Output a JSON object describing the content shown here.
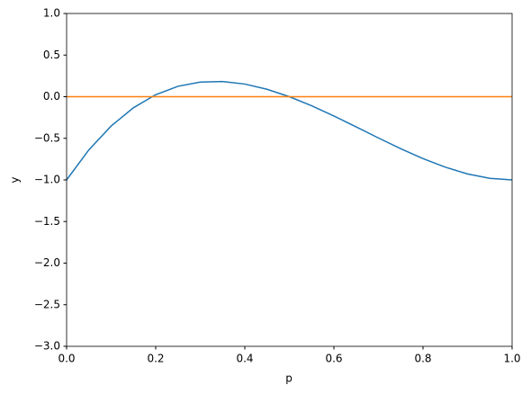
{
  "chart_data": {
    "type": "line",
    "x_label": "p",
    "y_label": "y",
    "x": [
      0,
      0.05,
      0.1,
      0.15,
      0.2,
      0.25,
      0.3,
      0.35,
      0.4,
      0.45,
      0.5,
      0.55,
      0.6,
      0.65,
      0.7,
      0.75,
      0.8,
      0.85,
      0.9,
      0.95,
      1
    ],
    "series": [
      {
        "color": "#1f77b4",
        "values": [
          -1,
          -0.639,
          -0.352,
          -0.133,
          0.024,
          0.125,
          0.176,
          0.183,
          0.152,
          0.089,
          0,
          -0.109,
          -0.232,
          -0.363,
          -0.496,
          -0.625,
          -0.744,
          -0.847,
          -0.928,
          -0.981,
          -1
        ]
      },
      {
        "color": "#ff7f0e",
        "values": [
          0,
          0,
          0,
          0,
          0,
          0,
          0,
          0,
          0,
          0,
          0,
          0,
          0,
          0,
          0,
          0,
          0,
          0,
          0,
          0,
          0
        ]
      }
    ],
    "xlim": [
      0,
      1
    ],
    "ylim": [
      -3,
      1
    ],
    "xticks": [
      {
        "value": 0,
        "label": "0.0"
      },
      {
        "value": 0.2,
        "label": "0.2"
      },
      {
        "value": 0.4,
        "label": "0.4"
      },
      {
        "value": 0.6,
        "label": "0.6"
      },
      {
        "value": 0.8,
        "label": "0.8"
      },
      {
        "value": 1,
        "label": "1.0"
      }
    ],
    "yticks": [
      {
        "value": -3,
        "label": "−3.0"
      },
      {
        "value": -2.5,
        "label": "−2.5"
      },
      {
        "value": -2,
        "label": "−2.0"
      },
      {
        "value": -1.5,
        "label": "−1.5"
      },
      {
        "value": -1,
        "label": "−1.0"
      },
      {
        "value": -0.5,
        "label": "−0.5"
      },
      {
        "value": 0,
        "label": "0.0"
      },
      {
        "value": 0.5,
        "label": "0.5"
      },
      {
        "value": 1,
        "label": "1.0"
      }
    ],
    "grid": false
  }
}
